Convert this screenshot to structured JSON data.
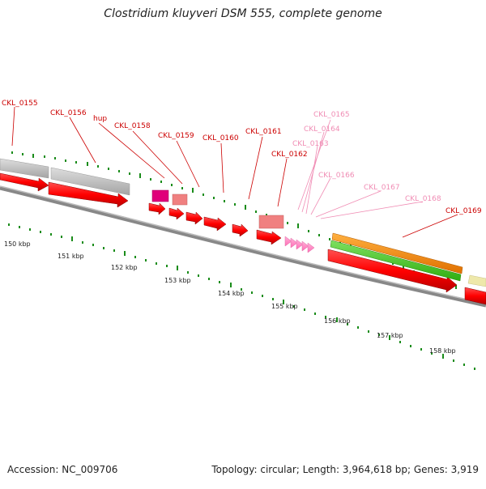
{
  "title": "Clostridium kluyveri DSM 555, complete genome",
  "footer": {
    "accession": "Accession: NC_009706",
    "summary": "Topology: circular; Length: 3,964,618 bp; Genes: 3,919"
  },
  "ticks": [
    "150 kbp",
    "151 kbp",
    "152 kbp",
    "153 kbp",
    "154 kbp",
    "155 kbp",
    "156 kbp",
    "157 kbp",
    "158 kbp"
  ],
  "genes": [
    {
      "label": "CKL_0155",
      "color": "#cc0000"
    },
    {
      "label": "CKL_0156",
      "color": "#cc0000"
    },
    {
      "label": "hup",
      "color": "#cc0000"
    },
    {
      "label": "CKL_0158",
      "color": "#cc0000"
    },
    {
      "label": "CKL_0159",
      "color": "#cc0000"
    },
    {
      "label": "CKL_0160",
      "color": "#cc0000"
    },
    {
      "label": "CKL_0161",
      "color": "#cc0000"
    },
    {
      "label": "CKL_0162",
      "color": "#cc0000"
    },
    {
      "label": "CKL_0165",
      "color": "#f08cb4"
    },
    {
      "label": "CKL_0164",
      "color": "#f08cb4"
    },
    {
      "label": "CKL_0163",
      "color": "#f08cb4"
    },
    {
      "label": "CKL_0166",
      "color": "#f08cb4"
    },
    {
      "label": "CKL_0167",
      "color": "#f08cb4"
    },
    {
      "label": "CKL_0168",
      "color": "#f08cb4"
    },
    {
      "label": "CKL_0169",
      "color": "#cc0000"
    }
  ],
  "colors": {
    "cds": "#ff0000",
    "trna": "#ff8fc8",
    "gray_feature": "#b9b9b9",
    "magenta": "#e0007a",
    "salmon": "#f08080",
    "orange": "#ff8c00",
    "green": "#44cc22",
    "khaki": "#eee8aa",
    "backbone": "#888888",
    "tick": "#1a8c1a"
  }
}
